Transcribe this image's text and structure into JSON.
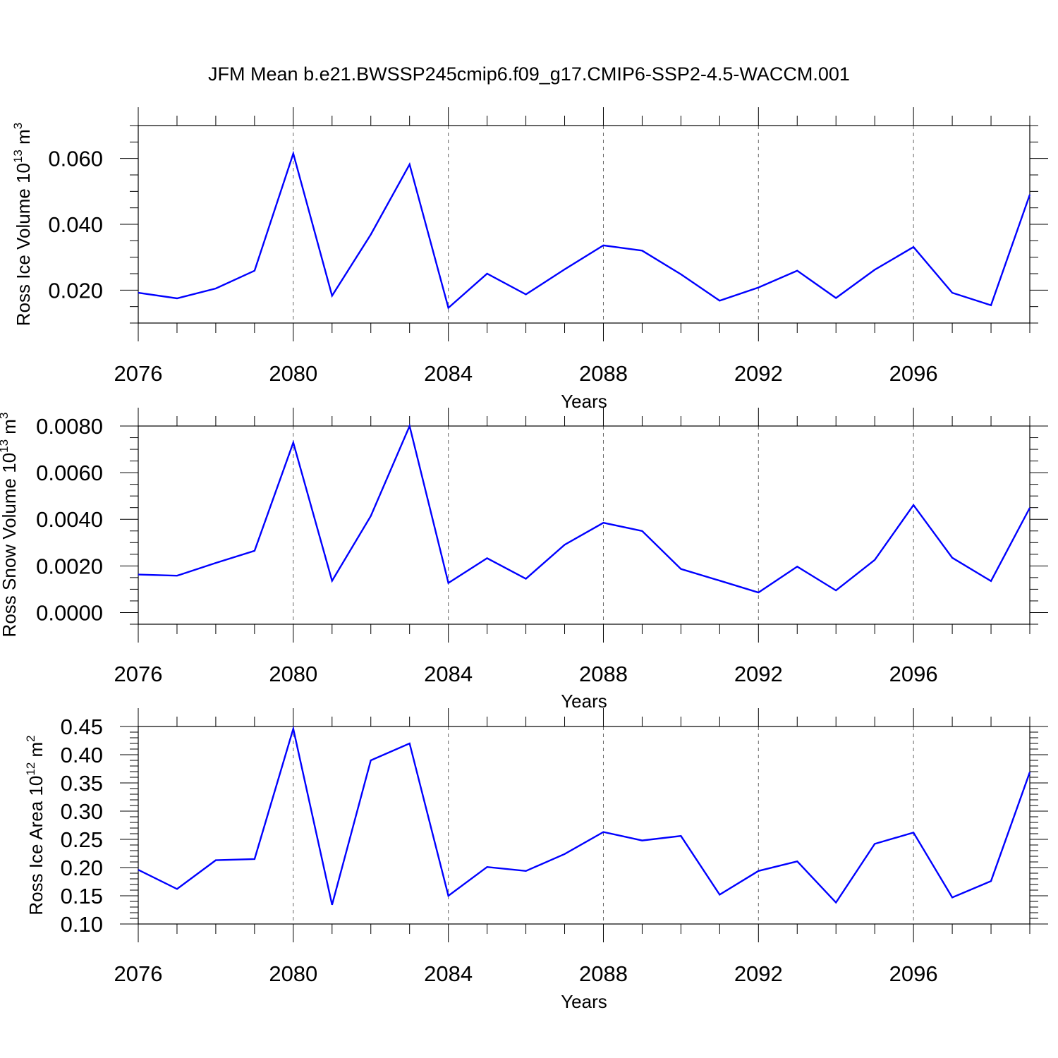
{
  "title": "JFM Mean b.e21.BWSSP245cmip6.f09_g17.CMIP6-SSP2-4.5-WACCM.001",
  "colors": {
    "line": "#0000ff",
    "axis": "#000000",
    "grid": "#666666"
  },
  "chart_data": [
    {
      "type": "line",
      "ylabel_main": "Ross Ice Volume 10",
      "ylabel_exp": "13",
      "ylabel_unit": " m",
      "ylabel_unit_exp": "3",
      "xlabel": "Years",
      "x": [
        2076,
        2077,
        2078,
        2079,
        2080,
        2081,
        2082,
        2083,
        2084,
        2085,
        2086,
        2087,
        2088,
        2089,
        2090,
        2091,
        2092,
        2093,
        2094,
        2095,
        2096,
        2097,
        2098,
        2099
      ],
      "values": [
        0.0192,
        0.0175,
        0.0205,
        0.0259,
        0.0615,
        0.0183,
        0.0369,
        0.0582,
        0.0146,
        0.025,
        0.0187,
        0.0263,
        0.0336,
        0.032,
        0.0248,
        0.0168,
        0.0208,
        0.0259,
        0.0176,
        0.0262,
        0.0331,
        0.0192,
        0.0154,
        0.049
      ],
      "xlim": [
        2076,
        2099
      ],
      "ylim": [
        0.01,
        0.07
      ],
      "xticks": [
        "2076",
        "2080",
        "2084",
        "2088",
        "2092",
        "2096"
      ],
      "yticks": [
        "0.020",
        "0.040",
        "0.060"
      ],
      "grid": "vertical dashed at labeled years"
    },
    {
      "type": "line",
      "ylabel_main": "Ross Snow Volume 10",
      "ylabel_exp": "13",
      "ylabel_unit": " m",
      "ylabel_unit_exp": "3",
      "xlabel": "Years",
      "x": [
        2076,
        2077,
        2078,
        2079,
        2080,
        2081,
        2082,
        2083,
        2084,
        2085,
        2086,
        2087,
        2088,
        2089,
        2090,
        2091,
        2092,
        2093,
        2094,
        2095,
        2096,
        2097,
        2098,
        2099
      ],
      "values": [
        0.00163,
        0.00158,
        0.00213,
        0.00265,
        0.00729,
        0.00136,
        0.00414,
        0.008,
        0.00127,
        0.00233,
        0.00145,
        0.00291,
        0.00385,
        0.0035,
        0.00187,
        0.00137,
        0.00086,
        0.00197,
        0.00095,
        0.00226,
        0.00461,
        0.00235,
        0.00135,
        0.00449
      ],
      "xlim": [
        2076,
        2099
      ],
      "ylim": [
        -0.0005,
        0.008
      ],
      "xticks": [
        "2076",
        "2080",
        "2084",
        "2088",
        "2092",
        "2096"
      ],
      "yticks": [
        "0.0000",
        "0.0020",
        "0.0040",
        "0.0060",
        "0.0080"
      ],
      "grid": "vertical dashed at labeled years"
    },
    {
      "type": "line",
      "ylabel_main": "Ross Ice Area 10",
      "ylabel_exp": "12",
      "ylabel_unit": " m",
      "ylabel_unit_exp": "2",
      "xlabel": "Years",
      "x": [
        2076,
        2077,
        2078,
        2079,
        2080,
        2081,
        2082,
        2083,
        2084,
        2085,
        2086,
        2087,
        2088,
        2089,
        2090,
        2091,
        2092,
        2093,
        2094,
        2095,
        2096,
        2097,
        2098,
        2099
      ],
      "values": [
        0.196,
        0.162,
        0.213,
        0.215,
        0.446,
        0.134,
        0.39,
        0.42,
        0.15,
        0.201,
        0.194,
        0.224,
        0.263,
        0.248,
        0.256,
        0.152,
        0.194,
        0.211,
        0.138,
        0.242,
        0.262,
        0.147,
        0.176,
        0.369
      ],
      "xlim": [
        2076,
        2099
      ],
      "ylim": [
        0.1,
        0.45
      ],
      "xticks": [
        "2076",
        "2080",
        "2084",
        "2088",
        "2092",
        "2096"
      ],
      "yticks": [
        "0.10",
        "0.15",
        "0.20",
        "0.25",
        "0.30",
        "0.35",
        "0.40",
        "0.45"
      ],
      "grid": "vertical dashed at labeled years"
    }
  ]
}
